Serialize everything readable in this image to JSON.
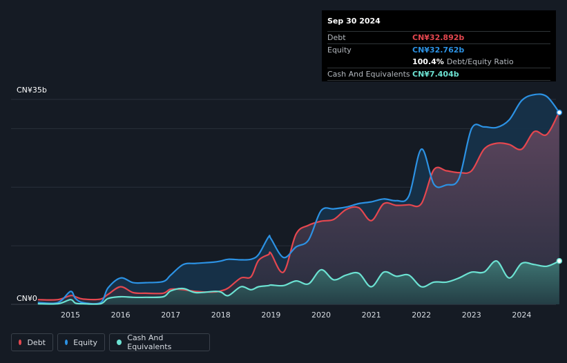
{
  "tooltip": {
    "date": "Sep 30 2024",
    "debt_label": "Debt",
    "debt_value": "CN¥32.892b",
    "equity_label": "Equity",
    "equity_value": "CN¥32.762b",
    "ratio_value": "100.4%",
    "ratio_label": "Debt/Equity Ratio",
    "cash_label": "Cash And Equivalents",
    "cash_value": "CN¥7.404b"
  },
  "legend": [
    {
      "label": "Debt",
      "color": "#e5474f"
    },
    {
      "label": "Equity",
      "color": "#2c92e4"
    },
    {
      "label": "Cash And Equivalents",
      "color": "#6ce2d2"
    }
  ],
  "colors": {
    "debt": "#e5474f",
    "equity": "#2c92e4",
    "cash": "#6ce2d2",
    "background": "#151b24"
  },
  "chart_data": {
    "type": "area",
    "x_unit": "year",
    "y_unit": "CN¥ billion",
    "ylim": [
      0,
      35
    ],
    "xlim": [
      2014.3,
      2024.75
    ],
    "y_tick_labels": [
      {
        "value": 35,
        "label": "CN¥35b"
      },
      {
        "value": 0,
        "label": "CN¥0"
      }
    ],
    "x_tick_labels": [
      "2015",
      "2016",
      "2017",
      "2018",
      "2019",
      "2020",
      "2021",
      "2022",
      "2023",
      "2024"
    ],
    "gridlines": true,
    "series": [
      {
        "name": "Debt",
        "x": [
          2014.35,
          2014.75,
          2015.0,
          2015.1,
          2015.25,
          2015.6,
          2015.75,
          2016.0,
          2016.25,
          2016.5,
          2016.85,
          2017.0,
          2017.25,
          2017.5,
          2017.85,
          2018.0,
          2018.15,
          2018.4,
          2018.6,
          2018.75,
          2018.95,
          2019.0,
          2019.25,
          2019.5,
          2019.75,
          2020.0,
          2020.25,
          2020.5,
          2020.75,
          2021.0,
          2021.25,
          2021.5,
          2021.75,
          2022.0,
          2022.25,
          2022.5,
          2022.75,
          2023.0,
          2023.25,
          2023.5,
          2023.75,
          2024.0,
          2024.25,
          2024.5,
          2024.75
        ],
        "values": [
          0.8,
          0.8,
          1.5,
          1.3,
          0.9,
          0.9,
          1.7,
          3.0,
          2.0,
          1.9,
          1.9,
          2.6,
          2.5,
          2.2,
          2.1,
          2.3,
          2.8,
          4.5,
          4.7,
          7.5,
          8.5,
          8.7,
          5.5,
          12.0,
          13.5,
          14.2,
          14.5,
          16.2,
          16.5,
          14.3,
          17.2,
          16.9,
          17.0,
          17.2,
          23.0,
          22.8,
          22.5,
          22.8,
          26.5,
          27.5,
          27.3,
          26.5,
          29.5,
          29.0,
          32.892
        ]
      },
      {
        "name": "Equity",
        "x": [
          2014.35,
          2014.75,
          2015.0,
          2015.1,
          2015.25,
          2015.6,
          2015.75,
          2016.0,
          2016.25,
          2016.5,
          2016.85,
          2017.0,
          2017.25,
          2017.5,
          2017.85,
          2018.0,
          2018.15,
          2018.4,
          2018.6,
          2018.75,
          2018.95,
          2019.0,
          2019.25,
          2019.5,
          2019.75,
          2020.0,
          2020.25,
          2020.5,
          2020.75,
          2021.0,
          2021.25,
          2021.5,
          2021.75,
          2022.0,
          2022.25,
          2022.5,
          2022.75,
          2023.0,
          2023.25,
          2023.5,
          2023.75,
          2024.0,
          2024.25,
          2024.5,
          2024.75
        ],
        "values": [
          0.3,
          0.3,
          2.2,
          1.0,
          0.3,
          0.3,
          2.8,
          4.5,
          3.7,
          3.7,
          3.9,
          5.0,
          6.8,
          7.0,
          7.2,
          7.4,
          7.7,
          7.6,
          7.7,
          8.5,
          11.5,
          11.2,
          8.0,
          9.8,
          11.0,
          16.0,
          16.3,
          16.6,
          17.2,
          17.5,
          18.0,
          17.7,
          18.5,
          26.5,
          20.5,
          20.4,
          21.5,
          30.0,
          30.3,
          30.2,
          31.5,
          34.8,
          35.8,
          35.5,
          32.762
        ]
      },
      {
        "name": "Cash And Equivalents",
        "x": [
          2014.35,
          2014.75,
          2015.0,
          2015.1,
          2015.25,
          2015.6,
          2015.75,
          2016.0,
          2016.25,
          2016.5,
          2016.85,
          2017.0,
          2017.25,
          2017.5,
          2017.85,
          2018.0,
          2018.15,
          2018.4,
          2018.6,
          2018.75,
          2018.95,
          2019.0,
          2019.25,
          2019.5,
          2019.75,
          2020.0,
          2020.25,
          2020.5,
          2020.75,
          2021.0,
          2021.25,
          2021.5,
          2021.75,
          2022.0,
          2022.25,
          2022.5,
          2022.75,
          2023.0,
          2023.25,
          2023.5,
          2023.75,
          2024.0,
          2024.25,
          2024.5,
          2024.75
        ],
        "values": [
          0.1,
          0.1,
          0.8,
          0.2,
          0.1,
          0.1,
          1.0,
          1.3,
          1.2,
          1.2,
          1.3,
          2.3,
          2.7,
          2.0,
          2.2,
          2.1,
          1.5,
          3.0,
          2.5,
          3.0,
          3.2,
          3.3,
          3.2,
          4.0,
          3.5,
          5.9,
          4.2,
          5.0,
          5.3,
          3.0,
          5.5,
          4.8,
          5.0,
          3.0,
          3.8,
          3.8,
          4.5,
          5.5,
          5.5,
          7.4,
          4.5,
          7.0,
          6.8,
          6.5,
          7.404
        ]
      }
    ]
  }
}
